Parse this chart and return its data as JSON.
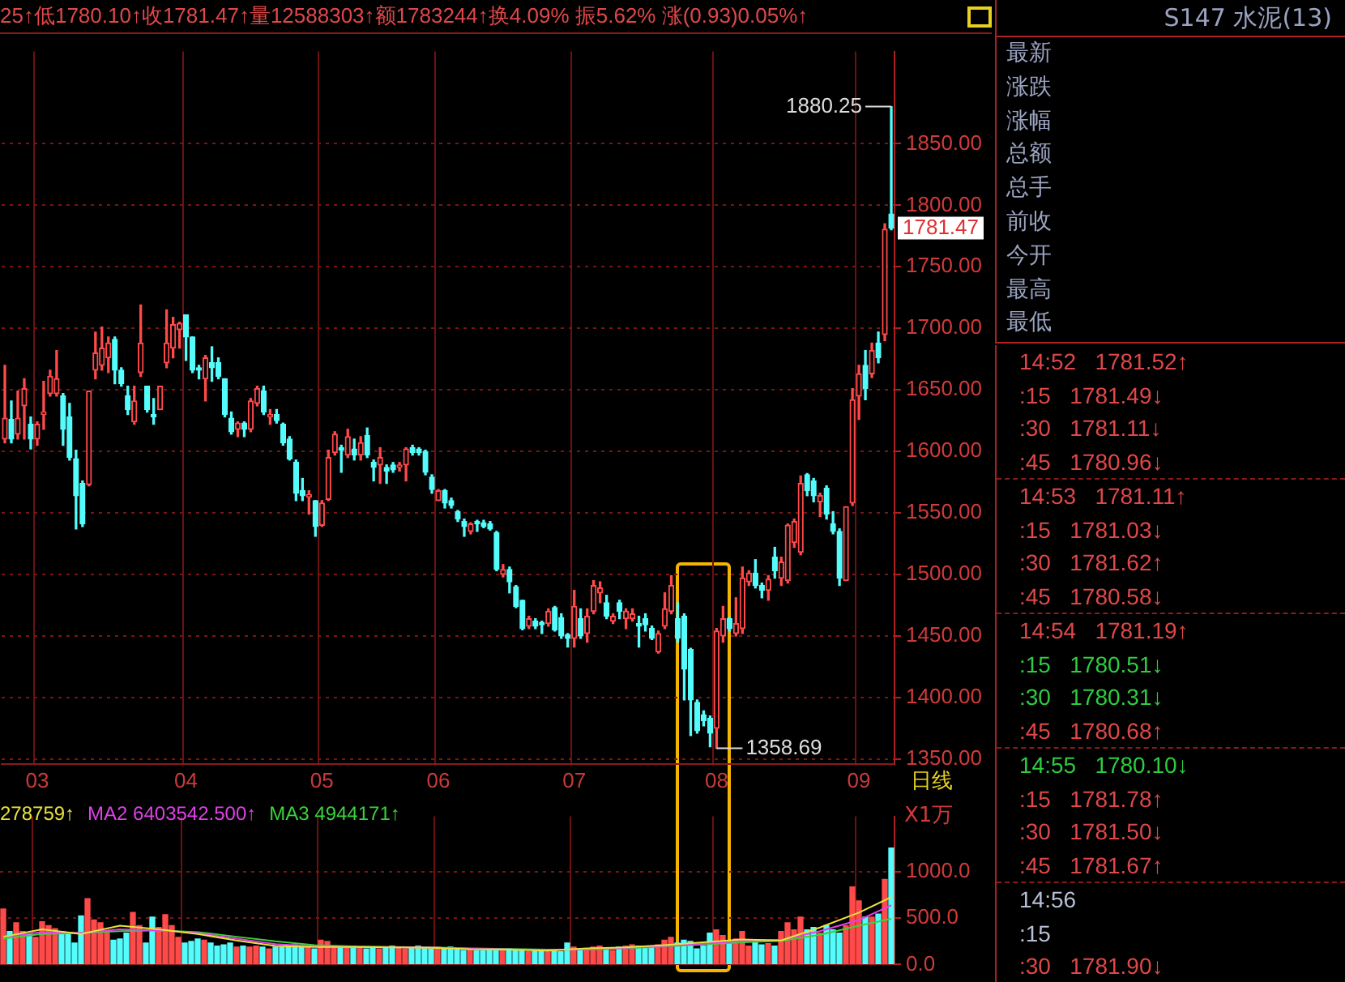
{
  "chart_data": [
    {
      "type": "candlestick",
      "title": "25↑低1780.10↑收1781.47↑量12588303↑额1783244↑换4.09% 振5.62% 涨(0.93)0.05%↑",
      "categories": [
        null,
        null,
        null,
        null,
        null,
        "03",
        null,
        null,
        null,
        null,
        null,
        null,
        null,
        null,
        null,
        null,
        null,
        null,
        null,
        null,
        null,
        null,
        null,
        null,
        null,
        null,
        null,
        null,
        "04",
        null,
        null,
        null,
        null,
        null,
        null,
        null,
        null,
        null,
        null,
        null,
        null,
        null,
        null,
        null,
        null,
        null,
        null,
        null,
        null,
        "05",
        null,
        null,
        null,
        null,
        null,
        null,
        null,
        null,
        null,
        null,
        null,
        null,
        null,
        null,
        null,
        null,
        null,
        "06",
        null,
        null,
        null,
        null,
        null,
        null,
        null,
        null,
        null,
        null,
        null,
        null,
        null,
        null,
        null,
        null,
        null,
        null,
        null,
        null,
        "07",
        null,
        null,
        null,
        null,
        null,
        null,
        null,
        null,
        null,
        null,
        null,
        null,
        null,
        null,
        null,
        null,
        null,
        null,
        null,
        null,
        null,
        "08",
        null,
        null,
        null,
        null,
        null,
        null,
        null,
        null,
        null,
        null,
        null,
        null,
        null,
        null,
        null,
        null,
        null,
        null,
        null,
        null,
        null,
        "09",
        null,
        null,
        null,
        null,
        null
      ],
      "ohlc": [
        [
          1610,
          1670,
          1607,
          1627
        ],
        [
          1626,
          1641,
          1607,
          1610
        ],
        [
          1614,
          1649,
          1610,
          1627
        ],
        [
          1637,
          1659,
          1610,
          1651
        ],
        [
          1622,
          1628,
          1602,
          1610
        ],
        [
          1610,
          1624,
          1605,
          1622
        ],
        [
          1630,
          1657,
          1618,
          1632
        ],
        [
          1647,
          1666,
          1645,
          1661
        ],
        [
          1647,
          1682,
          1645,
          1659
        ],
        [
          1645,
          1647,
          1605,
          1618
        ],
        [
          1628,
          1639,
          1593,
          1595
        ],
        [
          1594,
          1601,
          1537,
          1564
        ],
        [
          1574,
          1576,
          1539,
          1541
        ],
        [
          1573,
          1649,
          1572,
          1649
        ],
        [
          1666,
          1697,
          1659,
          1680
        ],
        [
          1670,
          1701,
          1666,
          1684
        ],
        [
          1676,
          1693,
          1664,
          1688
        ],
        [
          1691,
          1693,
          1655,
          1666
        ],
        [
          1666,
          1668,
          1653,
          1655
        ],
        [
          1645,
          1653,
          1630,
          1634
        ],
        [
          1624,
          1653,
          1622,
          1641
        ],
        [
          1664,
          1719,
          1661,
          1688
        ],
        [
          1653,
          1653,
          1632,
          1634
        ],
        [
          1630,
          1643,
          1622,
          1628
        ],
        [
          1634,
          1653,
          1634,
          1653
        ],
        [
          1672,
          1715,
          1668,
          1688
        ],
        [
          1684,
          1709,
          1676,
          1703
        ],
        [
          1699,
          1705,
          1684,
          1704
        ],
        [
          1711,
          1711,
          1674,
          1693
        ],
        [
          1693,
          1693,
          1664,
          1666
        ],
        [
          1668,
          1670,
          1659,
          1666
        ],
        [
          1659,
          1678,
          1641,
          1676
        ],
        [
          1672,
          1685,
          1657,
          1668
        ],
        [
          1672,
          1676,
          1659,
          1661
        ],
        [
          1659,
          1659,
          1628,
          1630
        ],
        [
          1627,
          1632,
          1614,
          1616
        ],
        [
          1618,
          1624,
          1612,
          1623
        ],
        [
          1623,
          1624,
          1612,
          1618
        ],
        [
          1618,
          1643,
          1616,
          1641
        ],
        [
          1639,
          1653,
          1637,
          1651
        ],
        [
          1649,
          1653,
          1630,
          1632
        ],
        [
          1628,
          1634,
          1622,
          1630
        ],
        [
          1630,
          1634,
          1623,
          1625
        ],
        [
          1622,
          1623,
          1605,
          1607
        ],
        [
          1610,
          1612,
          1593,
          1594
        ],
        [
          1591,
          1593,
          1560,
          1566
        ],
        [
          1568,
          1578,
          1560,
          1564
        ],
        [
          1563,
          1568,
          1549,
          1565
        ],
        [
          1560,
          1560,
          1531,
          1539
        ],
        [
          1540,
          1560,
          1539,
          1558
        ],
        [
          1561,
          1601,
          1560,
          1595
        ],
        [
          1599,
          1616,
          1597,
          1614
        ],
        [
          1603,
          1605,
          1583,
          1601
        ],
        [
          1597,
          1618,
          1595,
          1612
        ],
        [
          1602,
          1610,
          1593,
          1597
        ],
        [
          1597,
          1612,
          1593,
          1607
        ],
        [
          1613,
          1619,
          1595,
          1597
        ],
        [
          1591,
          1593,
          1576,
          1587
        ],
        [
          1589,
          1603,
          1574,
          1595
        ],
        [
          1587,
          1589,
          1574,
          1584
        ],
        [
          1589,
          1591,
          1583,
          1585
        ],
        [
          1587,
          1591,
          1584,
          1589
        ],
        [
          1589,
          1603,
          1576,
          1602
        ],
        [
          1603,
          1605,
          1597,
          1599
        ],
        [
          1602,
          1603,
          1597,
          1599
        ],
        [
          1600,
          1601,
          1581,
          1583
        ],
        [
          1579,
          1581,
          1566,
          1569
        ],
        [
          1560,
          1569,
          1560,
          1568
        ],
        [
          1568,
          1569,
          1554,
          1558
        ],
        [
          1560,
          1562,
          1554,
          1556
        ],
        [
          1551,
          1552,
          1543,
          1545
        ],
        [
          1543,
          1545,
          1531,
          1539
        ],
        [
          1535,
          1542,
          1533,
          1541
        ],
        [
          1543,
          1544,
          1535,
          1541
        ],
        [
          1542,
          1544,
          1538,
          1539
        ],
        [
          1541,
          1543,
          1536,
          1537
        ],
        [
          1534,
          1535,
          1503,
          1504
        ],
        [
          1500,
          1508,
          1498,
          1504
        ],
        [
          1504,
          1506,
          1485,
          1494
        ],
        [
          1490,
          1491,
          1473,
          1474
        ],
        [
          1479,
          1479,
          1455,
          1456
        ],
        [
          1458,
          1466,
          1456,
          1464
        ],
        [
          1462,
          1464,
          1456,
          1458
        ],
        [
          1461,
          1462,
          1452,
          1459
        ],
        [
          1460,
          1472,
          1458,
          1470
        ],
        [
          1473,
          1474,
          1454,
          1455
        ],
        [
          1465,
          1468,
          1448,
          1450
        ],
        [
          1451,
          1452,
          1441,
          1448
        ],
        [
          1448,
          1487,
          1441,
          1474
        ],
        [
          1464,
          1472,
          1448,
          1450
        ],
        [
          1452,
          1472,
          1445,
          1466
        ],
        [
          1470,
          1495,
          1468,
          1491
        ],
        [
          1485,
          1494,
          1477,
          1489
        ],
        [
          1477,
          1483,
          1464,
          1466
        ],
        [
          1462,
          1468,
          1460,
          1466
        ],
        [
          1477,
          1479,
          1464,
          1470
        ],
        [
          1464,
          1472,
          1456,
          1470
        ],
        [
          1464,
          1472,
          1462,
          1468
        ],
        [
          1460,
          1466,
          1441,
          1458
        ],
        [
          1464,
          1468,
          1454,
          1459
        ],
        [
          1456,
          1458,
          1447,
          1448
        ],
        [
          1437,
          1454,
          1436,
          1452
        ],
        [
          1458,
          1485,
          1456,
          1472
        ],
        [
          1470,
          1499,
          1468,
          1491
        ],
        [
          1464,
          1477,
          1445,
          1448
        ],
        [
          1466,
          1468,
          1398,
          1423
        ],
        [
          1439,
          1440,
          1369,
          1398
        ],
        [
          1396,
          1398,
          1371,
          1373
        ],
        [
          1386,
          1389,
          1377,
          1381
        ],
        [
          1383,
          1385,
          1360,
          1371
        ],
        [
          1375,
          1456,
          1358.69,
          1454
        ],
        [
          1450,
          1474,
          1445,
          1464
        ],
        [
          1464,
          1465,
          1454,
          1456
        ],
        [
          1452,
          1481,
          1450,
          1460
        ],
        [
          1456,
          1506,
          1452,
          1497
        ],
        [
          1494,
          1503,
          1491,
          1501
        ],
        [
          1501,
          1512,
          1489,
          1491
        ],
        [
          1491,
          1493,
          1481,
          1487
        ],
        [
          1487,
          1499,
          1479,
          1496
        ],
        [
          1514,
          1522,
          1497,
          1503
        ],
        [
          1497,
          1514,
          1491,
          1510
        ],
        [
          1495,
          1541,
          1493,
          1540
        ],
        [
          1526,
          1545,
          1522,
          1543
        ],
        [
          1518,
          1580,
          1516,
          1574
        ],
        [
          1581,
          1582,
          1564,
          1568
        ],
        [
          1576,
          1578,
          1559,
          1564
        ],
        [
          1559,
          1566,
          1547,
          1564
        ],
        [
          1570,
          1572,
          1545,
          1549
        ],
        [
          1541,
          1551,
          1533,
          1535
        ],
        [
          1535,
          1537,
          1491,
          1497
        ],
        [
          1495,
          1555,
          1495,
          1555
        ],
        [
          1558,
          1651,
          1556,
          1642
        ],
        [
          1645,
          1670,
          1626,
          1663
        ],
        [
          1670,
          1682,
          1642,
          1651
        ],
        [
          1663,
          1688,
          1660,
          1682
        ],
        [
          1688,
          1697,
          1672,
          1676
        ],
        [
          1695,
          1785,
          1690,
          1780.54
        ],
        [
          1793,
          1880.25,
          1780.1,
          1781.47
        ]
      ],
      "colors": [
        "#ff4a4a",
        "#54fcfc",
        "#ff4a4a",
        "#ff4a4a",
        "#54fcfc",
        "#ff4a4a",
        "#ff4a4a",
        "#ff4a4a",
        "#ff4a4a",
        "#54fcfc",
        "#54fcfc",
        "#54fcfc",
        "#54fcfc",
        "#ff4a4a",
        "#ff4a4a",
        "#ff4a4a",
        "#ff4a4a",
        "#54fcfc",
        "#54fcfc",
        "#54fcfc",
        "#ff4a4a",
        "#ff4a4a",
        "#54fcfc",
        "#54fcfc",
        "#ff4a4a",
        "#ff4a4a",
        "#ff4a4a",
        "#ff4a4a",
        "#54fcfc",
        "#54fcfc",
        "#54fcfc",
        "#ff4a4a",
        "#54fcfc",
        "#54fcfc",
        "#54fcfc",
        "#54fcfc",
        "#ff4a4a",
        "#54fcfc",
        "#ff4a4a",
        "#ff4a4a",
        "#54fcfc",
        "#ff4a4a",
        "#54fcfc",
        "#54fcfc",
        "#54fcfc",
        "#54fcfc",
        "#54fcfc",
        "#ff4a4a",
        "#54fcfc",
        "#ff4a4a",
        "#ff4a4a",
        "#ff4a4a",
        "#54fcfc",
        "#ff4a4a",
        "#54fcfc",
        "#ff4a4a",
        "#54fcfc",
        "#54fcfc",
        "#ff4a4a",
        "#54fcfc",
        "#54fcfc",
        "#ff4a4a",
        "#ff4a4a",
        "#54fcfc",
        "#54fcfc",
        "#54fcfc",
        "#54fcfc",
        "#ff4a4a",
        "#54fcfc",
        "#54fcfc",
        "#54fcfc",
        "#54fcfc",
        "#ff4a4a",
        "#54fcfc",
        "#54fcfc",
        "#54fcfc",
        "#54fcfc",
        "#ff4a4a",
        "#54fcfc",
        "#54fcfc",
        "#54fcfc",
        "#ff4a4a",
        "#54fcfc",
        "#54fcfc",
        "#ff4a4a",
        "#54fcfc",
        "#54fcfc",
        "#54fcfc",
        "#ff4a4a",
        "#54fcfc",
        "#ff4a4a",
        "#ff4a4a",
        "#ff4a4a",
        "#54fcfc",
        "#ff4a4a",
        "#54fcfc",
        "#ff4a4a",
        "#ff4a4a",
        "#54fcfc",
        "#54fcfc",
        "#54fcfc",
        "#ff4a4a",
        "#ff4a4a",
        "#ff4a4a",
        "#54fcfc",
        "#54fcfc",
        "#54fcfc",
        "#54fcfc",
        "#54fcfc",
        "#54fcfc",
        "#ff4a4a",
        "#ff4a4a",
        "#54fcfc",
        "#ff4a4a",
        "#ff4a4a",
        "#ff4a4a",
        "#54fcfc",
        "#54fcfc",
        "#ff4a4a",
        "#54fcfc",
        "#ff4a4a",
        "#ff4a4a",
        "#ff4a4a",
        "#ff4a4a",
        "#54fcfc",
        "#54fcfc",
        "#ff4a4a",
        "#54fcfc",
        "#54fcfc",
        "#54fcfc",
        "#ff4a4a",
        "#ff4a4a",
        "#ff4a4a",
        "#54fcfc",
        "#ff4a4a",
        "#54fcfc",
        "#ff4a4a",
        "#54fcfc"
      ],
      "ylim": [
        1346,
        1925
      ],
      "yticks": [
        {
          "value": 1350,
          "label": "1350.00"
        },
        {
          "value": 1400,
          "label": "1400.00"
        },
        {
          "value": 1450,
          "label": "1450.00"
        },
        {
          "value": 1500,
          "label": "1500.00"
        },
        {
          "value": 1550,
          "label": "1550.00"
        },
        {
          "value": 1600,
          "label": "1600.00"
        },
        {
          "value": 1650,
          "label": "1650.00"
        },
        {
          "value": 1700,
          "label": "1700.00"
        },
        {
          "value": 1750,
          "label": "1750.00"
        },
        {
          "value": 1800,
          "label": "1800.00"
        },
        {
          "value": 1850,
          "label": "1850.00"
        }
      ],
      "grid": true,
      "annotations": [
        "1880.25",
        "1358.69",
        "1781.47",
        "日线"
      ]
    },
    {
      "type": "bar",
      "ylabel": "X1万",
      "tick_labels": "y",
      "grid": true,
      "legend": "top left",
      "categories": [
        null,
        null,
        null,
        null,
        null,
        "03",
        null,
        null,
        null,
        null,
        null,
        null,
        null,
        null,
        null,
        null,
        null,
        null,
        null,
        null,
        null,
        null,
        null,
        null,
        null,
        null,
        null,
        null,
        "04",
        null,
        null,
        null,
        null,
        null,
        null,
        null,
        null,
        null,
        null,
        null,
        null,
        null,
        null,
        null,
        null,
        null,
        null,
        null,
        null,
        "05",
        null,
        null,
        null,
        null,
        null,
        null,
        null,
        null,
        null,
        null,
        null,
        null,
        null,
        null,
        null,
        null,
        null,
        "06",
        null,
        null,
        null,
        null,
        null,
        null,
        null,
        null,
        null,
        null,
        null,
        null,
        null,
        null,
        null,
        null,
        null,
        null,
        null,
        null,
        "07",
        null,
        null,
        null,
        null,
        null,
        null,
        null,
        null,
        null,
        null,
        null,
        null,
        null,
        null,
        null,
        null,
        null,
        null,
        null,
        null,
        null,
        "08",
        null,
        null,
        null,
        null,
        null,
        null,
        null,
        null,
        null,
        null,
        null,
        null,
        null,
        null,
        null,
        null,
        null,
        null,
        null,
        null,
        null,
        "09",
        null,
        null,
        null,
        null,
        null
      ],
      "ylim": [
        0,
        1600
      ],
      "yticks": [
        {
          "value": 0,
          "label": "0.0"
        },
        {
          "value": 500,
          "label": "500.0"
        },
        {
          "value": 1000,
          "label": "1000.0"
        }
      ],
      "series": [
        {
          "values": [
            600,
            356,
            450,
            356,
            325,
            294,
            462,
            419,
            388,
            356,
            325,
            231,
            525,
            712,
            481,
            450,
            338,
            263,
            275,
            338,
            562,
            419,
            231,
            512,
            400,
            538,
            419,
            294,
            231,
            250,
            275,
            263,
            231,
            200,
            212,
            231,
            188,
            200,
            188,
            200,
            188,
            169,
            188,
            188,
            200,
            212,
            188,
            188,
            169,
            263,
            250,
            188,
            200,
            188,
            200,
            188,
            169,
            188,
            169,
            188,
            200,
            188,
            169,
            188,
            200,
            188,
            169,
            188,
            169,
            188,
            169,
            150,
            169,
            150,
            150,
            169,
            150,
            162,
            169,
            150,
            150,
            138,
            162,
            150,
            138,
            150,
            138,
            231,
            188,
            150,
            162,
            188,
            200,
            169,
            150,
            188,
            200,
            212,
            200,
            188,
            200,
            212,
            263,
            294,
            231,
            263,
            250,
            169,
            200,
            338,
            375,
            312,
            231,
            275,
            356,
            200,
            250,
            212,
            225,
            200,
            356,
            450,
            375,
            512,
            375,
            400,
            338,
            419,
            375,
            338,
            419,
            838,
            688,
            512,
            512,
            544,
            919,
            1258.83
          ],
          "colors": [
            "#ff4a4a",
            "#54fcfc",
            "#ff4a4a",
            "#ff4a4a",
            "#54fcfc",
            "#ff4a4a",
            "#ff4a4a",
            "#ff4a4a",
            "#ff4a4a",
            "#54fcfc",
            "#54fcfc",
            "#54fcfc",
            "#54fcfc",
            "#ff4a4a",
            "#ff4a4a",
            "#ff4a4a",
            "#ff4a4a",
            "#54fcfc",
            "#54fcfc",
            "#54fcfc",
            "#ff4a4a",
            "#ff4a4a",
            "#54fcfc",
            "#54fcfc",
            "#ff4a4a",
            "#ff4a4a",
            "#ff4a4a",
            "#ff4a4a",
            "#54fcfc",
            "#54fcfc",
            "#54fcfc",
            "#ff4a4a",
            "#54fcfc",
            "#54fcfc",
            "#54fcfc",
            "#54fcfc",
            "#ff4a4a",
            "#54fcfc",
            "#ff4a4a",
            "#ff4a4a",
            "#54fcfc",
            "#ff4a4a",
            "#54fcfc",
            "#54fcfc",
            "#54fcfc",
            "#54fcfc",
            "#54fcfc",
            "#ff4a4a",
            "#54fcfc",
            "#ff4a4a",
            "#ff4a4a",
            "#ff4a4a",
            "#54fcfc",
            "#ff4a4a",
            "#54fcfc",
            "#ff4a4a",
            "#54fcfc",
            "#54fcfc",
            "#ff4a4a",
            "#54fcfc",
            "#54fcfc",
            "#ff4a4a",
            "#ff4a4a",
            "#54fcfc",
            "#54fcfc",
            "#54fcfc",
            "#54fcfc",
            "#ff4a4a",
            "#54fcfc",
            "#54fcfc",
            "#54fcfc",
            "#54fcfc",
            "#ff4a4a",
            "#54fcfc",
            "#54fcfc",
            "#54fcfc",
            "#54fcfc",
            "#ff4a4a",
            "#54fcfc",
            "#54fcfc",
            "#54fcfc",
            "#ff4a4a",
            "#54fcfc",
            "#54fcfc",
            "#ff4a4a",
            "#54fcfc",
            "#54fcfc",
            "#54fcfc",
            "#ff4a4a",
            "#54fcfc",
            "#ff4a4a",
            "#ff4a4a",
            "#ff4a4a",
            "#54fcfc",
            "#ff4a4a",
            "#54fcfc",
            "#ff4a4a",
            "#ff4a4a",
            "#54fcfc",
            "#54fcfc",
            "#54fcfc",
            "#ff4a4a",
            "#ff4a4a",
            "#ff4a4a",
            "#54fcfc",
            "#54fcfc",
            "#54fcfc",
            "#54fcfc",
            "#54fcfc",
            "#54fcfc",
            "#ff4a4a",
            "#ff4a4a",
            "#54fcfc",
            "#ff4a4a",
            "#ff4a4a",
            "#ff4a4a",
            "#54fcfc",
            "#54fcfc",
            "#ff4a4a",
            "#54fcfc",
            "#ff4a4a",
            "#ff4a4a",
            "#ff4a4a",
            "#ff4a4a",
            "#54fcfc",
            "#54fcfc",
            "#ff4a4a",
            "#54fcfc",
            "#54fcfc",
            "#54fcfc",
            "#ff4a4a",
            "#ff4a4a",
            "#ff4a4a",
            "#54fcfc",
            "#ff4a4a",
            "#54fcfc",
            "#ff4a4a",
            "#54fcfc"
          ]
        },
        {
          "type": "line",
          "name": "278759↑",
          "color": "#e8e23a",
          "values": [
            300,
            null,
            null,
            null,
            null,
            null,
            380,
            null,
            null,
            null,
            null,
            null,
            330,
            null,
            null,
            null,
            null,
            null,
            420,
            null,
            null,
            null,
            null,
            null,
            380,
            null,
            null,
            null,
            null,
            null,
            330,
            null,
            null,
            null,
            null,
            null,
            260,
            null,
            null,
            null,
            null,
            null,
            200,
            null,
            null,
            null,
            null,
            null,
            190,
            null,
            null,
            null,
            null,
            null,
            190,
            null,
            null,
            null,
            null,
            null,
            185,
            null,
            null,
            null,
            null,
            null,
            180,
            null,
            null,
            null,
            null,
            null,
            165,
            null,
            null,
            null,
            null,
            null,
            160,
            null,
            null,
            null,
            null,
            null,
            150,
            null,
            null,
            null,
            null,
            null,
            175,
            null,
            null,
            null,
            null,
            null,
            185,
            null,
            null,
            null,
            null,
            null,
            210,
            null,
            null,
            null,
            null,
            null,
            240,
            null,
            null,
            null,
            null,
            null,
            270,
            null,
            null,
            null,
            null,
            null,
            260,
            null,
            null,
            null,
            null,
            null,
            400,
            null,
            null,
            null,
            null,
            null,
            560,
            null,
            null,
            null,
            null,
            728
          ]
        },
        {
          "type": "line",
          "name": "MA2 6403542.500↑",
          "color": "#e040e8",
          "values": [
            300,
            null,
            null,
            null,
            null,
            null,
            350,
            null,
            null,
            null,
            null,
            null,
            340,
            null,
            null,
            null,
            null,
            null,
            380,
            null,
            null,
            null,
            null,
            null,
            370,
            null,
            null,
            null,
            null,
            null,
            340,
            null,
            null,
            null,
            null,
            null,
            280,
            null,
            null,
            null,
            null,
            null,
            220,
            null,
            null,
            null,
            null,
            null,
            195,
            null,
            null,
            null,
            null,
            null,
            190,
            null,
            null,
            null,
            null,
            null,
            188,
            null,
            null,
            null,
            null,
            null,
            182,
            null,
            null,
            null,
            null,
            null,
            170,
            null,
            null,
            null,
            null,
            null,
            163,
            null,
            null,
            null,
            null,
            null,
            155,
            null,
            null,
            null,
            null,
            null,
            165,
            null,
            null,
            null,
            null,
            null,
            180,
            null,
            null,
            null,
            null,
            null,
            200,
            null,
            null,
            null,
            null,
            null,
            225,
            null,
            null,
            null,
            null,
            null,
            255,
            null,
            null,
            null,
            null,
            null,
            265,
            null,
            null,
            null,
            null,
            null,
            360,
            null,
            null,
            null,
            null,
            null,
            480,
            null,
            null,
            null,
            null,
            640
          ]
        },
        {
          "type": "line",
          "name": "MA3 4944171↑",
          "color": "#3ad23a",
          "values": [
            280,
            null,
            null,
            null,
            null,
            null,
            330,
            null,
            null,
            null,
            null,
            null,
            340,
            null,
            null,
            null,
            null,
            null,
            360,
            null,
            null,
            null,
            null,
            null,
            370,
            null,
            null,
            null,
            null,
            null,
            350,
            null,
            null,
            null,
            null,
            null,
            300,
            null,
            null,
            null,
            null,
            null,
            250,
            null,
            null,
            null,
            null,
            null,
            210,
            null,
            null,
            null,
            null,
            null,
            195,
            null,
            null,
            null,
            null,
            null,
            190,
            null,
            null,
            null,
            null,
            null,
            185,
            null,
            null,
            null,
            null,
            null,
            175,
            null,
            null,
            null,
            null,
            null,
            168,
            null,
            null,
            null,
            null,
            null,
            160,
            null,
            null,
            null,
            null,
            null,
            160,
            null,
            null,
            null,
            null,
            null,
            175,
            null,
            null,
            null,
            null,
            null,
            195,
            null,
            null,
            null,
            null,
            null,
            215,
            null,
            null,
            null,
            null,
            null,
            240,
            null,
            null,
            null,
            null,
            null,
            255,
            null,
            null,
            null,
            null,
            null,
            320,
            null,
            null,
            null,
            null,
            null,
            420,
            null,
            null,
            null,
            null,
            494
          ]
        }
      ]
    },
    {
      "type": "other",
      "title": "S147 水泥(13)",
      "annotations": [
        "最新",
        "涨跌",
        "涨幅",
        "总额",
        "总手",
        "前收",
        "今开",
        "最高",
        "最低"
      ]
    },
    {
      "type": "other",
      "annotations": [
        "14:52   1781.52↑",
        ":15   1781.49↓",
        ":30   1781.11↓",
        ":45   1780.96↓",
        "14:53   1781.11↑",
        ":15   1781.03↓",
        ":30   1781.62↑",
        ":45   1780.58↓",
        "14:54   1781.19↑",
        ":15   1780.51↓",
        ":30   1780.31↓",
        ":45   1780.68↑",
        "14:55   1780.10↓",
        ":15   1781.78↑",
        ":30   1781.50↓",
        ":45   1781.67↑",
        "14:56",
        ":15",
        ":30   1781.90↓"
      ],
      "colors": [
        "#e04848",
        "#e04848",
        "#e04848",
        "#e04848",
        "#e04848",
        "#e04848",
        "#e04848",
        "#e04848",
        "#e04848",
        "#2ecc40",
        "#2ecc40",
        "#e04848",
        "#2ecc40",
        "#e04848",
        "#e04848",
        "#e04848",
        "#b8c0d8",
        "#b8c0d8",
        "#e04848"
      ]
    }
  ]
}
